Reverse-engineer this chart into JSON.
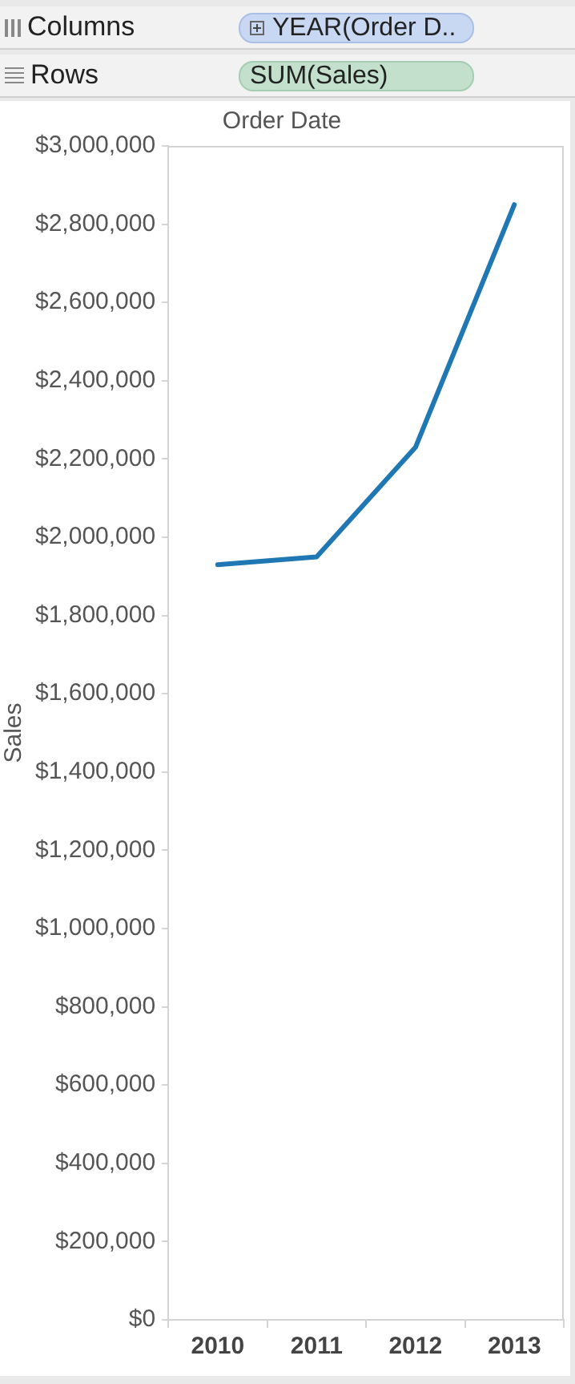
{
  "chart_data": {
    "type": "line",
    "xlabel": "Order Date",
    "ylabel": "Sales",
    "categories": [
      "2010",
      "2011",
      "2012",
      "2013"
    ],
    "series": [
      {
        "color": "#1f77b4",
        "values": [
          1930000,
          1950000,
          2230000,
          2850000
        ]
      }
    ],
    "ylim": [
      0,
      3000000
    ],
    "yticks": [
      {
        "value": 0,
        "label": "$0"
      },
      {
        "value": 200000,
        "label": "$200,000"
      },
      {
        "value": 400000,
        "label": "$400,000"
      },
      {
        "value": 600000,
        "label": "$600,000"
      },
      {
        "value": 800000,
        "label": "$800,000"
      },
      {
        "value": 1000000,
        "label": "$1,000,000"
      },
      {
        "value": 1200000,
        "label": "$1,200,000"
      },
      {
        "value": 1400000,
        "label": "$1,400,000"
      },
      {
        "value": 1600000,
        "label": "$1,600,000"
      },
      {
        "value": 1800000,
        "label": "$1,800,000"
      },
      {
        "value": 2000000,
        "label": "$2,000,000"
      },
      {
        "value": 2200000,
        "label": "$2,200,000"
      },
      {
        "value": 2400000,
        "label": "$2,400,000"
      },
      {
        "value": 2600000,
        "label": "$2,600,000"
      },
      {
        "value": 2800000,
        "label": "$2,800,000"
      },
      {
        "value": 3000000,
        "label": "$3,000,000"
      }
    ],
    "grid": false,
    "legend": false,
    "marker": "none",
    "line_style": "solid",
    "annotations": [
      "Columns",
      "YEAR(Order D..",
      "Rows",
      "SUM(Sales)"
    ]
  }
}
